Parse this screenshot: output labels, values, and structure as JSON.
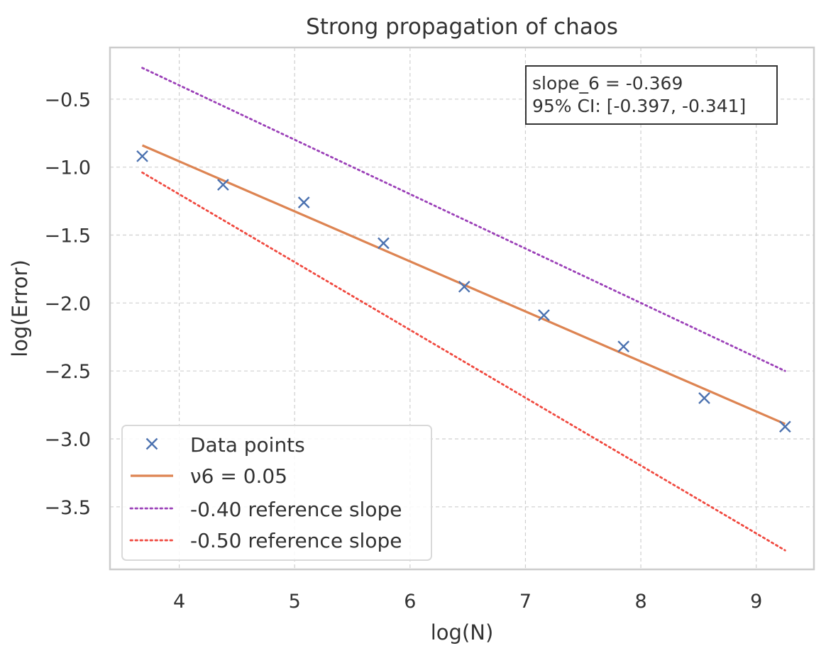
{
  "chart_data": {
    "type": "line",
    "title": "Strong propagation of chaos",
    "xlabel": "log(N)",
    "ylabel": "log(Error)",
    "xlim": [
      3.4,
      9.5
    ],
    "ylim": [
      -3.96,
      -0.12
    ],
    "xticks": [
      4,
      5,
      6,
      7,
      8,
      9
    ],
    "xtick_labels": [
      "4",
      "5",
      "6",
      "7",
      "8",
      "9"
    ],
    "yticks": [
      -0.5,
      -1.0,
      -1.5,
      -2.0,
      -2.5,
      -3.0,
      -3.5
    ],
    "ytick_labels": [
      "−0.5",
      "−1.0",
      "−1.5",
      "−2.0",
      "−2.5",
      "−3.0",
      "−3.5"
    ],
    "grid": true,
    "legend_position": "lower-left",
    "series": [
      {
        "name": "Data points",
        "kind": "scatter",
        "marker": "x",
        "color": "#4c72b0",
        "x": [
          3.68,
          4.38,
          5.08,
          5.77,
          6.47,
          7.16,
          7.85,
          8.55,
          9.25
        ],
        "y": [
          -0.92,
          -1.13,
          -1.26,
          -1.56,
          -1.88,
          -2.09,
          -2.32,
          -2.7,
          -2.91
        ]
      },
      {
        "name": "ν6 = 0.05",
        "kind": "line",
        "style": "solid",
        "color": "#dd8452",
        "x": [
          3.68,
          9.25
        ],
        "y": [
          -0.84,
          -2.89
        ]
      },
      {
        "name": "-0.40 reference slope",
        "kind": "line",
        "style": "dotted",
        "color": "#9b40b8",
        "x": [
          3.68,
          9.25
        ],
        "y": [
          -0.27,
          -2.5
        ]
      },
      {
        "name": "-0.50 reference slope",
        "kind": "line",
        "style": "dotted",
        "color": "#f0493f",
        "x": [
          3.68,
          9.25
        ],
        "y": [
          -1.04,
          -3.82
        ]
      }
    ],
    "annotation": {
      "lines": [
        "slope_6 = -0.369",
        "95% CI: [-0.397, -0.341]"
      ],
      "position": "top-right"
    }
  }
}
